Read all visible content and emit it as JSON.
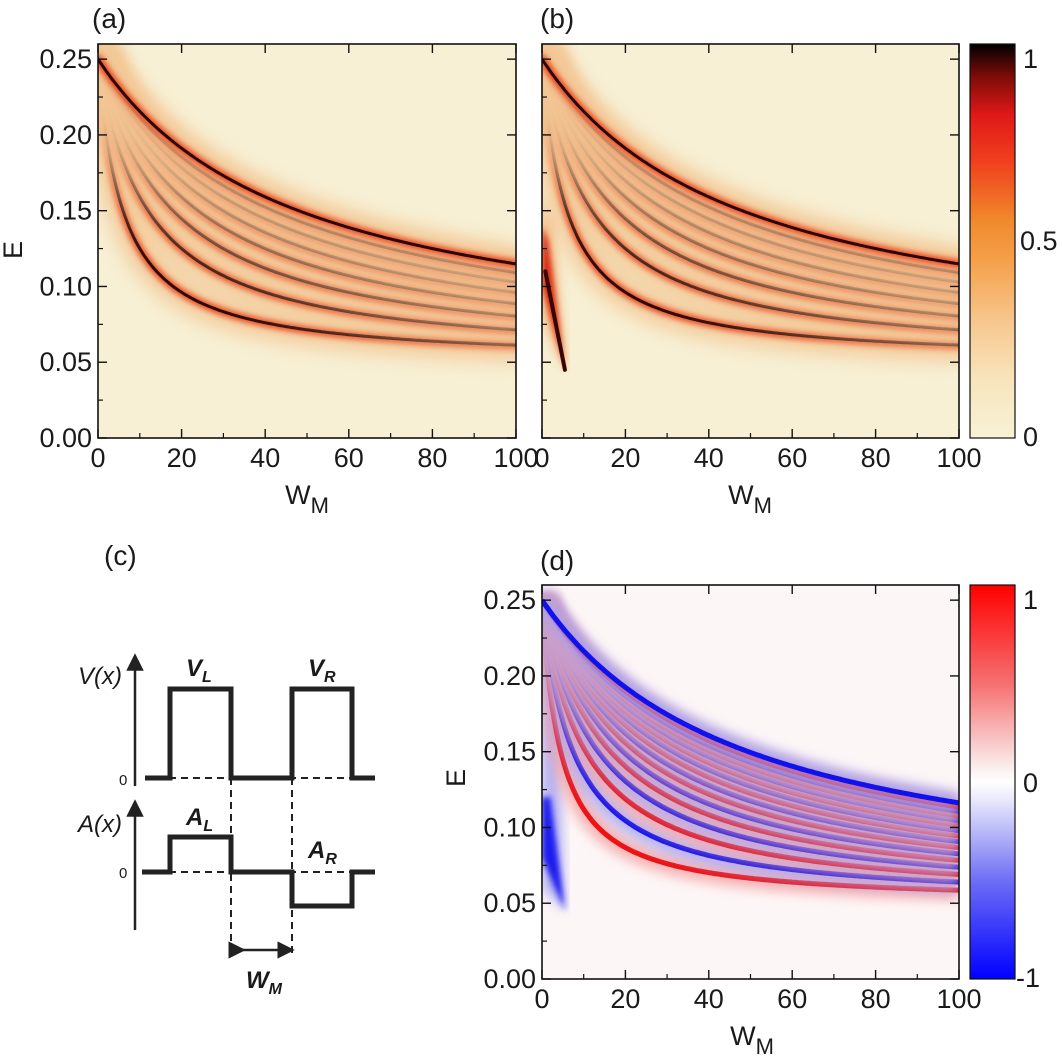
{
  "chart_data": [
    {
      "type": "heatmap",
      "panel_label": "(a)",
      "xlabel_main": "W",
      "xlabel_sub": "M",
      "ylabel": "E",
      "xlim": [
        0,
        100
      ],
      "ylim": [
        0,
        0.26
      ],
      "x_ticks": [
        "0",
        "20",
        "40",
        "60",
        "80",
        "100"
      ],
      "y_ticks": [
        "0.00",
        "0.05",
        "0.10",
        "0.15",
        "0.20",
        "0.25"
      ],
      "colormap": "white-yellow-orange-red-black",
      "colorbar": null,
      "feature": "Resonance ridges E_n(W_M) decreasing with W_M; lowest ridge approaches E≈0.05 at W_M=100",
      "ridge_orders": [
        1,
        2,
        3,
        4,
        5,
        6,
        7,
        8
      ]
    },
    {
      "type": "heatmap",
      "panel_label": "(b)",
      "xlabel_main": "W",
      "xlabel_sub": "M",
      "xlim": [
        0,
        100
      ],
      "ylim": [
        0,
        0.26
      ],
      "x_ticks": [
        "0",
        "20",
        "40",
        "60",
        "80",
        "100"
      ],
      "colormap": "white-yellow-orange-red-black",
      "colorbar": {
        "ticks": [
          "1",
          "0.5",
          "0"
        ],
        "range": [
          0,
          1
        ]
      },
      "feature": "Same ridges as (a) plus a wedge feature near W_M≈5 ending at E≈0.045",
      "ridge_orders": [
        1,
        2,
        3,
        4,
        5,
        6,
        7,
        8
      ]
    },
    {
      "type": "heatmap",
      "panel_label": "(d)",
      "xlabel_main": "W",
      "xlabel_sub": "M",
      "ylabel": "E",
      "xlim": [
        0,
        100
      ],
      "ylim": [
        0,
        0.26
      ],
      "x_ticks": [
        "0",
        "20",
        "40",
        "60",
        "80",
        "100"
      ],
      "y_ticks": [
        "0.00",
        "0.05",
        "0.10",
        "0.15",
        "0.20",
        "0.25"
      ],
      "colormap": "blue-white-red",
      "colorbar": {
        "ticks": [
          "1",
          "0",
          "-1"
        ],
        "range": [
          -1,
          1
        ]
      },
      "feature": "Alternating red (+1) and blue (-1) ridges; blue wedge near W_M≈5 ending at E≈0.045"
    }
  ],
  "schematic": {
    "panel_label": "(c)",
    "v_axis_label": "V(x)",
    "a_axis_label": "A(x)",
    "zero_label": "0",
    "v_left": "V",
    "v_left_sub": "L",
    "v_right": "V",
    "v_right_sub": "R",
    "a_left": "A",
    "a_left_sub": "L",
    "a_right": "A",
    "a_right_sub": "R",
    "width_label": "W",
    "width_sub": "M"
  }
}
